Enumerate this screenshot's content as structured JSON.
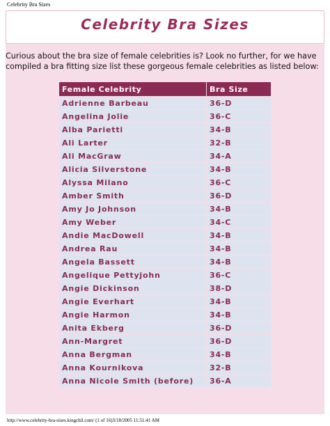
{
  "header": {
    "tab_title": "Celebrity Bra Sizes",
    "title": "Celebrity Bra Sizes"
  },
  "intro": "Curious about the bra size of  female celebrities is? Look no further, for we have compiled a bra fitting size list these gorgeous female celebrities as listed below:",
  "table": {
    "columns": [
      "Female Celebrity",
      "Bra Size"
    ],
    "rows": [
      [
        "Adrienne Barbeau",
        "36-D"
      ],
      [
        "Angelina Jolie",
        "36-C"
      ],
      [
        "Alba Parietti",
        "34-B"
      ],
      [
        "Ali Larter",
        "32-B"
      ],
      [
        "Ali MacGraw",
        "34-A"
      ],
      [
        "Alicia Silverstone",
        "34-B"
      ],
      [
        "Alyssa Milano",
        "36-C"
      ],
      [
        "Amber Smith",
        "36-D"
      ],
      [
        "Amy Jo Johnson",
        "34-B"
      ],
      [
        "Amy Weber",
        "34-C"
      ],
      [
        "Andie MacDowell",
        "34-B"
      ],
      [
        "Andrea Rau",
        "34-B"
      ],
      [
        "Angela Bassett",
        "34-B"
      ],
      [
        "Angelique Pettyjohn",
        "36-C"
      ],
      [
        "Angie Dickinson",
        "38-D"
      ],
      [
        "Angie Everhart",
        "34-B"
      ],
      [
        "Angie Harmon",
        "34-B"
      ],
      [
        "Anita Ekberg",
        "36-D"
      ],
      [
        "Ann-Margret",
        "36-D"
      ],
      [
        "Anna Bergman",
        "34-B"
      ],
      [
        "Anna Kournikova",
        "32-B"
      ],
      [
        "Anna Nicole Smith (before)",
        "36-A"
      ]
    ]
  },
  "footer": "http://www.celebrity-bra-sizes.kingchil.com/ (1 of 16)3/18/2005 11:51:41 AM"
}
